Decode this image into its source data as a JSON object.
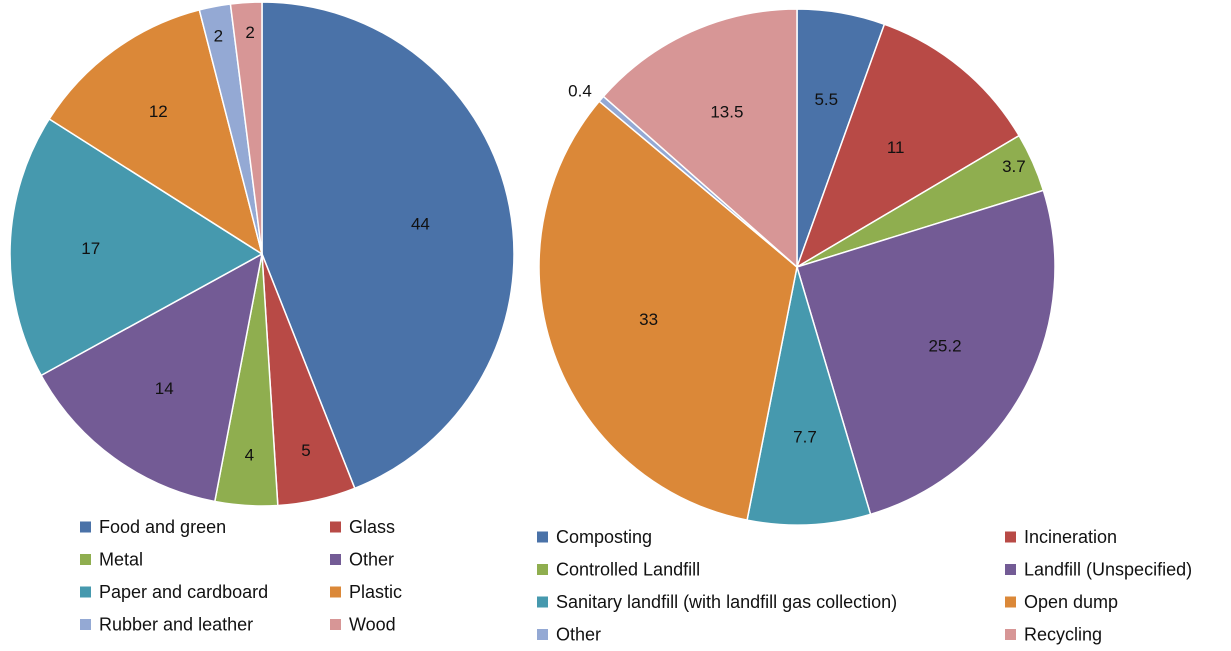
{
  "chart_data": [
    {
      "type": "pie",
      "title": "",
      "series": [
        {
          "values": [
            44,
            5,
            4,
            14,
            17,
            12,
            2,
            2
          ]
        }
      ],
      "categories": [
        "Food and green",
        "Glass",
        "Metal",
        "Other",
        "Paper and cardboard",
        "Plastic",
        "Rubber and leather",
        "Wood"
      ],
      "labels": [
        "44",
        "5",
        "4",
        "14",
        "17",
        "12",
        "2",
        "2"
      ],
      "colors": [
        "#4a72a8",
        "#b84a46",
        "#8fae4f",
        "#735b95",
        "#4699ae",
        "#db8838",
        "#94a9d4",
        "#d79696"
      ],
      "legend": {
        "position": "bottom",
        "items": [
          "Food and green",
          "Glass",
          "Metal",
          "Other",
          "Paper and cardboard",
          "Plastic",
          "Rubber and leather",
          "Wood"
        ]
      }
    },
    {
      "type": "pie",
      "title": "",
      "series": [
        {
          "values": [
            5.5,
            11,
            3.7,
            25.2,
            7.7,
            33,
            0.4,
            13.5
          ]
        }
      ],
      "categories": [
        "Composting",
        "Incineration",
        "Controlled Landfill",
        "Landfill (Unspecified)",
        "Sanitary landfill (with landfill gas collection)",
        "Open dump",
        "Other",
        "Recycling"
      ],
      "labels": [
        "5.5",
        "11",
        "3.7",
        "25.2",
        "7.7",
        "33",
        "0.4",
        "13.5"
      ],
      "colors": [
        "#4a72a8",
        "#b84a46",
        "#8fae4f",
        "#735b95",
        "#4699ae",
        "#db8838",
        "#94a9d4",
        "#d79696"
      ],
      "legend": {
        "position": "bottom",
        "items": [
          "Composting",
          "Incineration",
          "Controlled Landfill",
          "Landfill (Unspecified)",
          "Sanitary landfill (with landfill gas collection)",
          "Open dump",
          "Other",
          "Recycling"
        ]
      }
    }
  ]
}
